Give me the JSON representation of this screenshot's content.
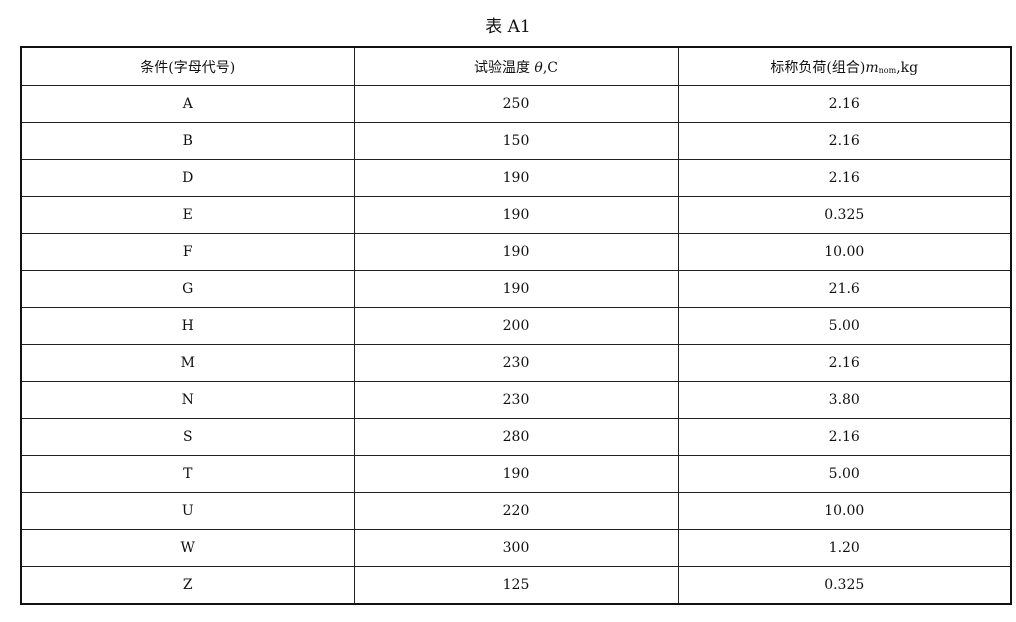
{
  "caption": "表 A1",
  "headers": {
    "condition": "条件(字母代号)",
    "temp_prefix": "试验温度 ",
    "temp_symbol": "θ",
    "temp_unit": ",C",
    "load_prefix": "标称负荷(组合)",
    "load_symbol": "m",
    "load_sub": "nom",
    "load_unit": ",kg"
  },
  "rows": [
    [
      "A",
      "250",
      "2.16"
    ],
    [
      "B",
      "150",
      "2.16"
    ],
    [
      "D",
      "190",
      "2.16"
    ],
    [
      "E",
      "190",
      "0.325"
    ],
    [
      "F",
      "190",
      "10.00"
    ],
    [
      "G",
      "190",
      "21.6"
    ],
    [
      "H",
      "200",
      "5.00"
    ],
    [
      "M",
      "230",
      "2.16"
    ],
    [
      "N",
      "230",
      "3.80"
    ],
    [
      "S",
      "280",
      "2.16"
    ],
    [
      "T",
      "190",
      "5.00"
    ],
    [
      "U",
      "220",
      "10.00"
    ],
    [
      "W",
      "300",
      "1.20"
    ],
    [
      "Z",
      "125",
      "0.325"
    ]
  ]
}
